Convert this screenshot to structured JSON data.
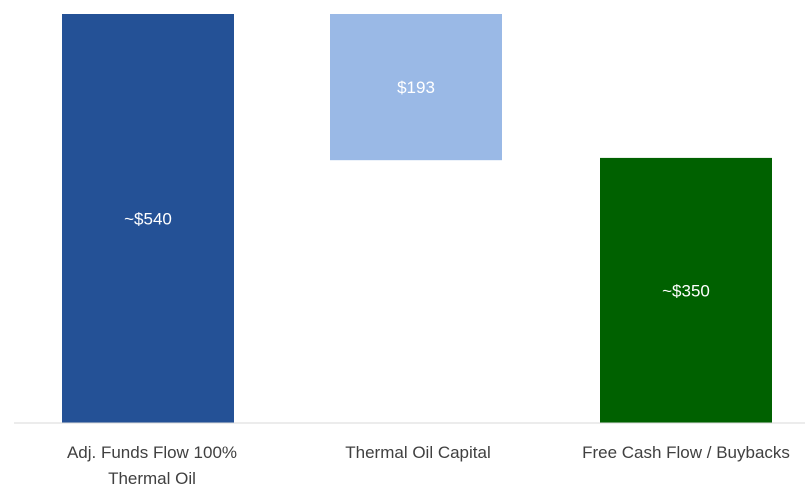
{
  "chart_data": {
    "type": "bar",
    "subtype": "waterfall",
    "categories": [
      "Adj. Funds Flow 100% Thermal Oil",
      "Thermal Oil Capital",
      "Free Cash Flow / Buybacks"
    ],
    "values": [
      540,
      -193,
      350
    ],
    "data_labels": [
      "~$540",
      "$193",
      "~$350"
    ],
    "colors": [
      "#245196",
      "#9ab9e6",
      "#006100"
    ],
    "ylim": [
      0,
      540
    ],
    "grid": false,
    "legend": "none",
    "title": "",
    "xlabel": "",
    "ylabel": ""
  }
}
